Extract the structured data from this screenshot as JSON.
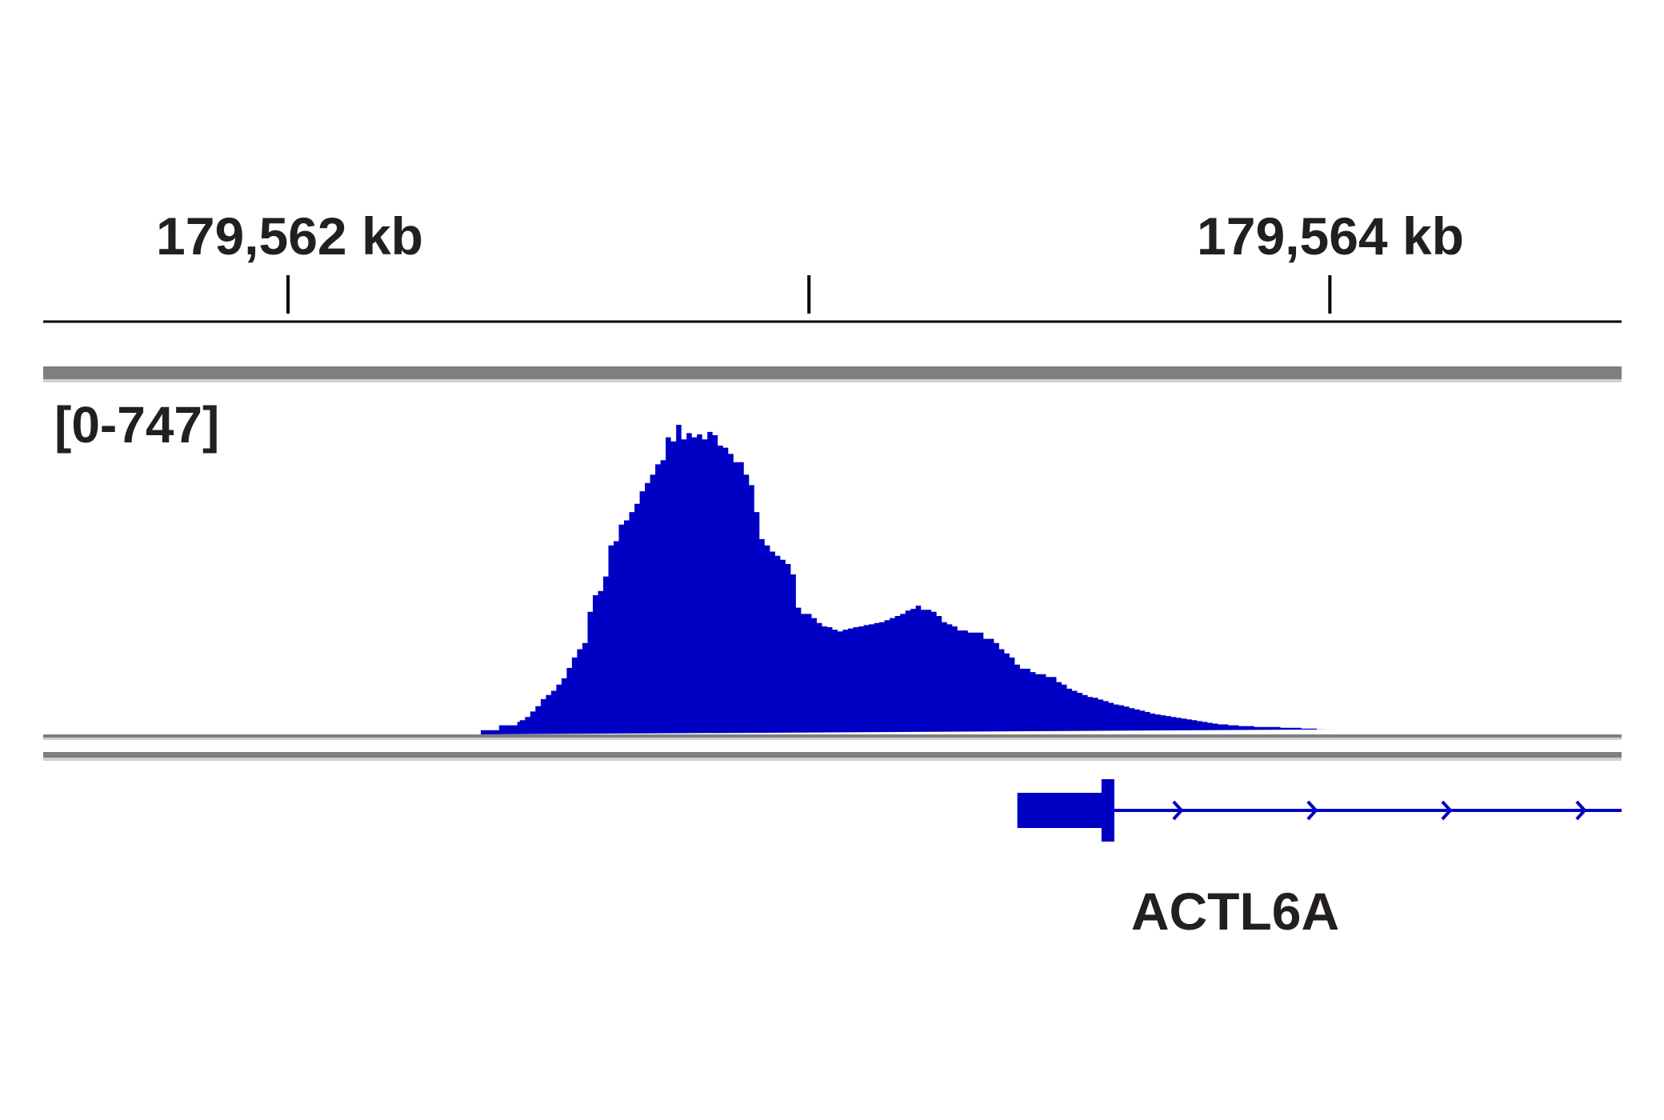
{
  "ruler": {
    "tick_labels": [
      "179,562 kb",
      "179,564 kb"
    ],
    "tick_label_kb": [
      179562,
      179564
    ],
    "unlabeled_tick_kb": [
      179563
    ]
  },
  "track": {
    "range_label": "[0-747]",
    "color": "#0000c4",
    "divider_color": "#7f7f7f"
  },
  "gene": {
    "name": "ACTL6A",
    "color": "#0000c4",
    "strand": "+"
  },
  "chart_data": {
    "type": "area",
    "title": "",
    "xlabel": "",
    "ylabel": "",
    "xunit": "kb",
    "ylim": [
      0,
      747
    ],
    "xlim": [
      179561.53,
      179564.56
    ],
    "x_ticks_kb": [
      179562,
      179563,
      179564
    ],
    "series": [
      {
        "step_x_kb": [
          179562.37,
          179562.405,
          179562.44,
          179562.445,
          179562.455,
          179562.465,
          179562.475,
          179562.485,
          179562.495,
          179562.505,
          179562.515,
          179562.525,
          179562.535,
          179562.545,
          179562.555,
          179562.565,
          179562.575,
          179562.585,
          179562.595,
          179562.605,
          179562.615,
          179562.625,
          179562.635,
          179562.645,
          179562.655,
          179562.665,
          179562.675,
          179562.685,
          179562.695,
          179562.705,
          179562.715,
          179562.725,
          179562.735,
          179562.745,
          179562.755,
          179562.765,
          179562.775,
          179562.785,
          179562.795,
          179562.805,
          179562.815,
          179562.825,
          179562.835,
          179562.845,
          179562.855,
          179562.875,
          179562.885,
          179562.895,
          179562.905,
          179562.915,
          179562.925,
          179562.935,
          179562.945,
          179562.955,
          179562.965,
          179562.975,
          179562.985,
          179563.005,
          179563.015,
          179563.025,
          179563.035,
          179563.045,
          179563.055,
          179563.065,
          179563.075,
          179563.085,
          179563.095,
          179563.105,
          179563.115,
          179563.125,
          179563.135,
          179563.145,
          179563.155,
          179563.165,
          179563.175,
          179563.185,
          179563.195,
          179563.205,
          179563.215,
          179563.235,
          179563.245,
          179563.255,
          179563.265,
          179563.275,
          179563.285,
          179563.305,
          179563.335,
          179563.355,
          179563.365,
          179563.375,
          179563.385,
          179563.395,
          179563.405,
          179563.425,
          179563.435,
          179563.455,
          179563.475,
          179563.485,
          179563.495,
          179563.505,
          179563.515,
          179563.525,
          179563.535,
          179563.545,
          179563.555,
          179563.565,
          179563.575,
          179563.585,
          179563.595,
          179563.605,
          179563.615,
          179563.625,
          179563.635,
          179563.645,
          179563.655,
          179563.665,
          179563.675,
          179563.685,
          179563.695,
          179563.705,
          179563.715,
          179563.725,
          179563.735,
          179563.745,
          179563.755,
          179563.765,
          179563.775,
          179563.785,
          179563.805,
          179563.825,
          179563.855,
          179563.905,
          179563.945,
          179563.975
        ],
        "values": [
          10,
          22,
          30,
          34,
          42,
          55,
          68,
          85,
          95,
          105,
          120,
          135,
          160,
          185,
          205,
          220,
          295,
          335,
          345,
          380,
          455,
          465,
          505,
          515,
          535,
          555,
          585,
          605,
          625,
          650,
          660,
          715,
          705,
          745,
          710,
          725,
          715,
          722,
          710,
          728,
          720,
          695,
          690,
          675,
          655,
          625,
          600,
          535,
          470,
          455,
          440,
          430,
          420,
          410,
          385,
          305,
          290,
          280,
          268,
          260,
          258,
          252,
          248,
          252,
          255,
          258,
          260,
          263,
          265,
          268,
          270,
          275,
          280,
          285,
          290,
          298,
          302,
          310,
          300,
          295,
          285,
          270,
          265,
          260,
          250,
          245,
          230,
          220,
          205,
          195,
          185,
          168,
          158,
          150,
          145,
          138,
          126,
          120,
          110,
          105,
          100,
          95,
          90,
          88,
          84,
          80,
          76,
          72,
          70,
          67,
          63,
          60,
          57,
          54,
          50,
          48,
          46,
          44,
          42,
          40,
          38,
          36,
          34,
          32,
          30,
          28,
          26,
          24,
          22,
          20,
          18,
          16,
          14,
          12,
          10,
          8
        ],
        "x_end_kb": 179564.0
      }
    ],
    "gene_model": {
      "thick_start_kb": 179563.4,
      "thick_end_kb": 179563.58,
      "tss_kb": 179563.58,
      "line_end_kb": 179564.56,
      "strand": "+"
    }
  }
}
